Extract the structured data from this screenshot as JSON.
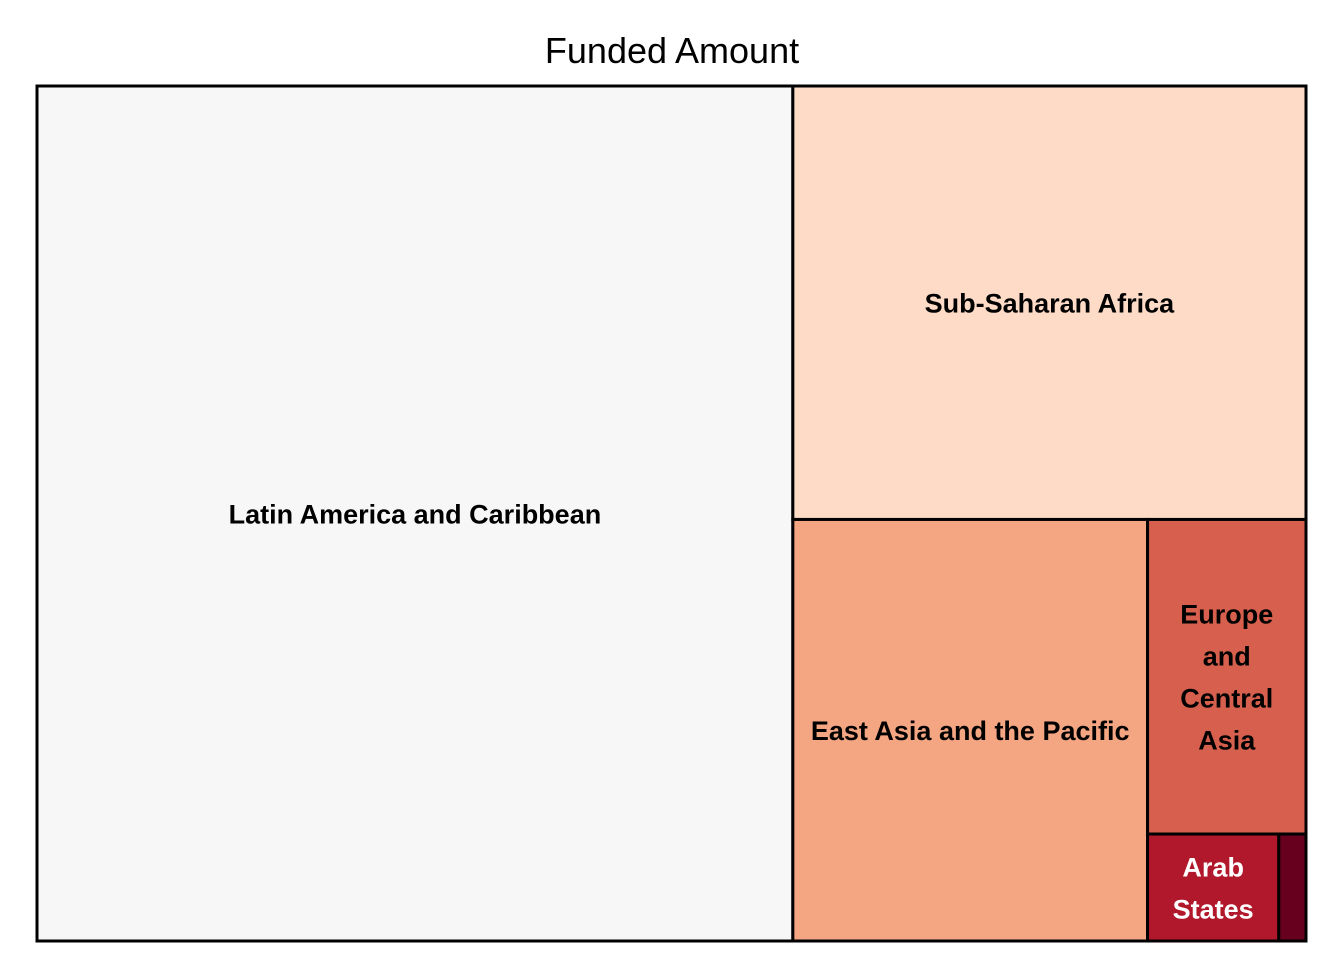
{
  "chart_data": {
    "type": "treemap",
    "title": "Funded Amount",
    "tiles": [
      {
        "label": "Latin America and Caribbean",
        "lines": [
          "Latin America and Caribbean"
        ],
        "value": 6444,
        "fill": "#f7f7f7",
        "text_color": "#000000"
      },
      {
        "label": "Sub-Saharan Africa",
        "lines": [
          "Sub-Saharan Africa"
        ],
        "value": 2218,
        "fill": "#fddbc7",
        "text_color": "#000000"
      },
      {
        "label": "East Asia and the Pacific",
        "lines": [
          "East Asia and the Pacific"
        ],
        "value": 1491,
        "fill": "#f4a582",
        "text_color": "#000000"
      },
      {
        "label": "Europe and Central Asia",
        "lines": [
          "Europe",
          "and",
          "Central",
          "Asia"
        ],
        "value": 497,
        "fill": "#d6604d",
        "text_color": "#000000"
      },
      {
        "label": "Arab States",
        "lines": [
          "Arab",
          "States"
        ],
        "value": 140,
        "fill": "#b2182b",
        "text_color": "#ffffff"
      },
      {
        "label": "",
        "lines": [],
        "value": 29,
        "fill": "#67001f",
        "text_color": "#ffffff"
      }
    ]
  }
}
